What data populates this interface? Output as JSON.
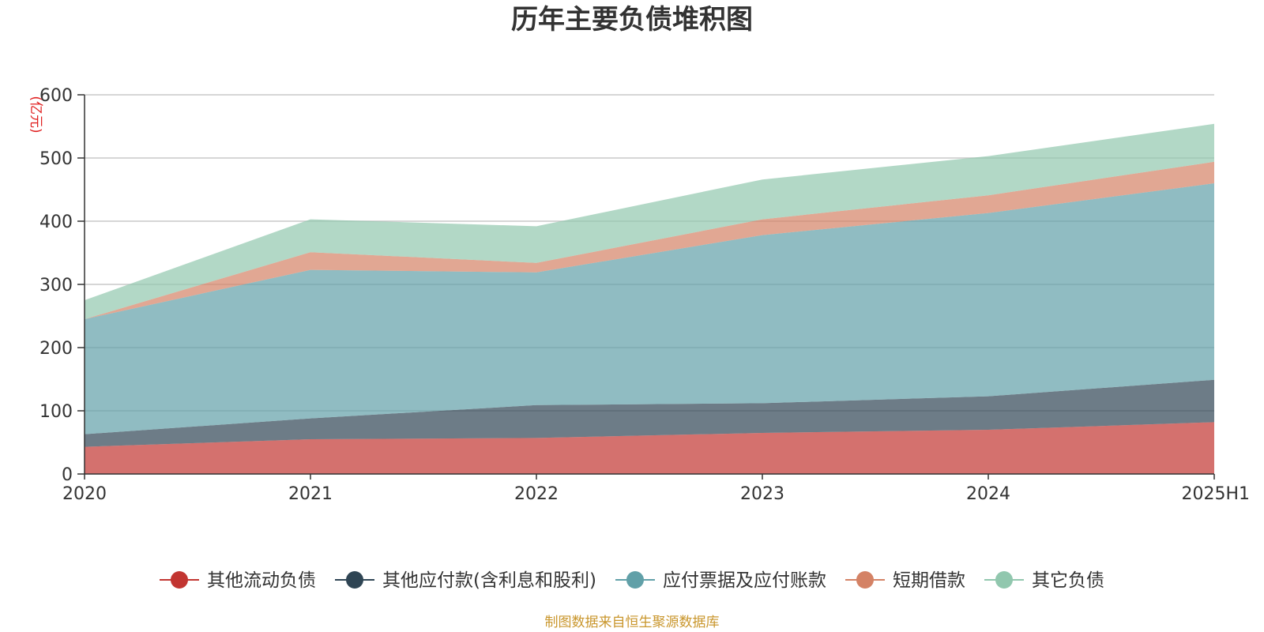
{
  "chart_data": {
    "type": "area",
    "stacked": true,
    "title": "历年主要负债堆积图",
    "ylabel": "(亿元)",
    "xlabel": "",
    "ylim": [
      0,
      600
    ],
    "yticks": [
      0,
      100,
      200,
      300,
      400,
      500,
      600
    ],
    "categories": [
      "2020",
      "2021",
      "2022",
      "2023",
      "2024",
      "2025H1"
    ],
    "legend_position": "bottom",
    "grid": true,
    "series": [
      {
        "name": "其他流动负债",
        "color": "#c23531",
        "values": [
          43,
          55,
          57,
          65,
          70,
          82
        ]
      },
      {
        "name": "其他应付款(含利息和股利)",
        "color": "#2f4554",
        "values": [
          20,
          33,
          52,
          47,
          53,
          67
        ]
      },
      {
        "name": "应付票据及应付账款",
        "color": "#61a0a8",
        "values": [
          182,
          235,
          210,
          266,
          290,
          311
        ]
      },
      {
        "name": "短期借款",
        "color": "#d48265",
        "values": [
          0,
          28,
          15,
          25,
          28,
          34
        ]
      },
      {
        "name": "其它负债",
        "color": "#91c7ae",
        "values": [
          30,
          52,
          58,
          63,
          62,
          60
        ]
      }
    ],
    "source_note": "制图数据来自恒生聚源数据库"
  }
}
